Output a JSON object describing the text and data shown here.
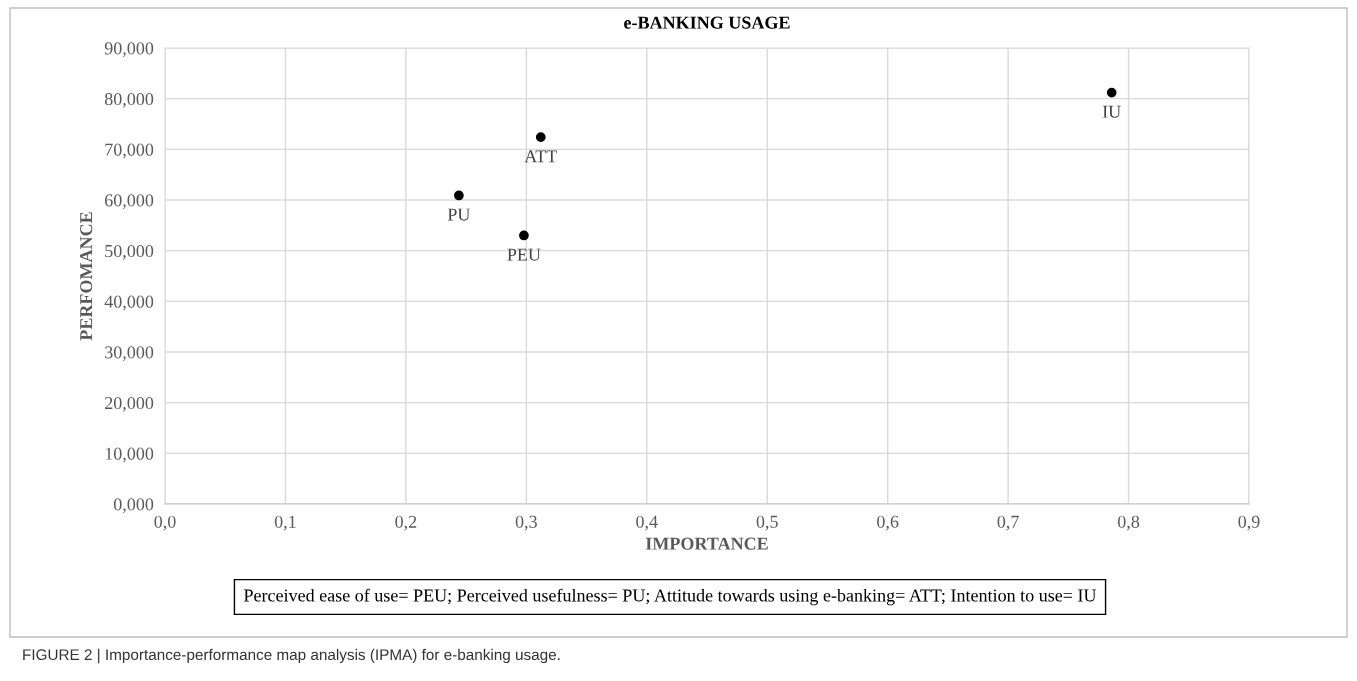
{
  "chart_data": {
    "type": "scatter",
    "title": "e-BANKING USAGE",
    "xlabel": "IMPORTANCE",
    "ylabel": "PERFOMANCE",
    "x": [
      0.244,
      0.298,
      0.312,
      0.786
    ],
    "values": [
      60.9,
      53.0,
      72.4,
      81.2
    ],
    "color": "#000000",
    "marker": "circle",
    "grid": true,
    "legend": false,
    "xlim": [
      0,
      0.9
    ],
    "ylim": [
      0,
      90
    ],
    "xticks": [
      {
        "value": 0,
        "label": "0,0"
      },
      {
        "value": 0.1,
        "label": "0,1"
      },
      {
        "value": 0.2,
        "label": "0,2"
      },
      {
        "value": 0.3,
        "label": "0,3"
      },
      {
        "value": 0.4,
        "label": "0,4"
      },
      {
        "value": 0.5,
        "label": "0,5"
      },
      {
        "value": 0.6,
        "label": "0,6"
      },
      {
        "value": 0.7,
        "label": "0,7"
      },
      {
        "value": 0.8,
        "label": "0,8"
      },
      {
        "value": 0.9,
        "label": "0,9"
      }
    ],
    "yticks": [
      {
        "value": 0,
        "label": "0,000"
      },
      {
        "value": 10,
        "label": "10,000"
      },
      {
        "value": 20,
        "label": "20,000"
      },
      {
        "value": 30,
        "label": "30,000"
      },
      {
        "value": 40,
        "label": "40,000"
      },
      {
        "value": 50,
        "label": "50,000"
      },
      {
        "value": 60,
        "label": "60,000"
      },
      {
        "value": 70,
        "label": "70,000"
      },
      {
        "value": 80,
        "label": "80,000"
      },
      {
        "value": 90,
        "label": "90,000"
      }
    ],
    "annotations": [
      {
        "text": "PU",
        "x": 0.244,
        "y": 60.9
      },
      {
        "text": "PEU",
        "x": 0.298,
        "y": 53.0
      },
      {
        "text": "ATT",
        "x": 0.312,
        "y": 72.4
      },
      {
        "text": "IU",
        "x": 0.786,
        "y": 81.2
      },
      "Perceived ease of use= PEU; Perceived usefulness= PU; Attitude towards using e-banking= ATT; Intention to use= IU",
      "FIGURE 2 | Importance-performance map analysis (IPMA) for e-banking usage."
    ]
  }
}
